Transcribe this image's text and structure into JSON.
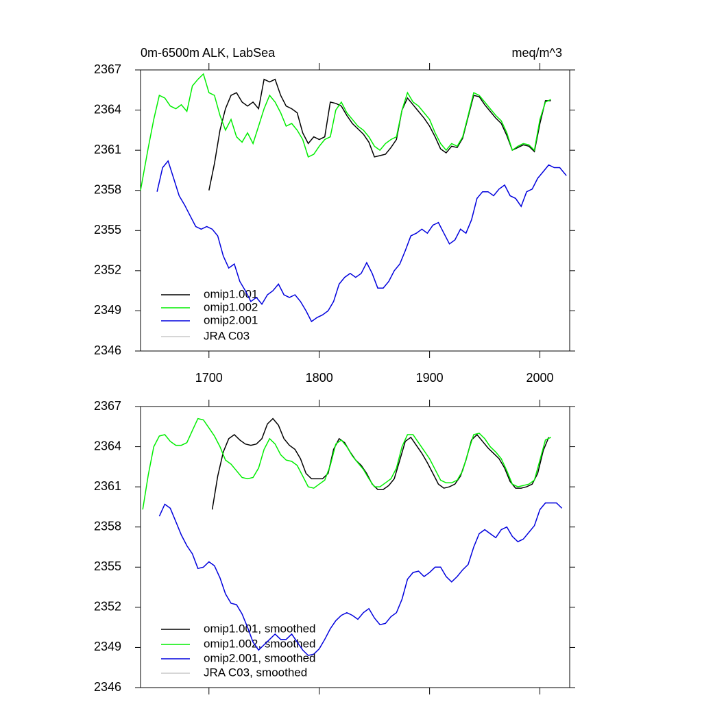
{
  "chart_data": [
    {
      "type": "line",
      "title": "0m-6500m ALK, LabSea",
      "units": "meq/m^3",
      "xlim": [
        1638,
        2027
      ],
      "xticks": [
        1700,
        1800,
        1900,
        2000
      ],
      "ylim": [
        2346,
        2367
      ],
      "yticks": [
        2346,
        2349,
        2352,
        2355,
        2358,
        2361,
        2364,
        2367
      ],
      "series": [
        {
          "name": "omip1.001",
          "color": "#000000",
          "x": [
            1700,
            1705,
            1710,
            1715,
            1720,
            1725,
            1730,
            1735,
            1740,
            1745,
            1750,
            1755,
            1760,
            1765,
            1770,
            1775,
            1780,
            1785,
            1790,
            1795,
            1800,
            1805,
            1810,
            1815,
            1820,
            1825,
            1830,
            1835,
            1840,
            1845,
            1850,
            1855,
            1860,
            1865,
            1870,
            1875,
            1880,
            1885,
            1890,
            1895,
            1900,
            1905,
            1910,
            1915,
            1920,
            1925,
            1930,
            1935,
            1940,
            1945,
            1950,
            1955,
            1960,
            1965,
            1970,
            1975,
            1980,
            1985,
            1990,
            1995,
            2000,
            2005,
            2010
          ],
          "values": [
            2358,
            2360.0,
            2362.5,
            2364.1,
            2365.1,
            2365.3,
            2364.6,
            2364.3,
            2364.6,
            2364.1,
            2366.3,
            2366.1,
            2366.3,
            2365.1,
            2364.3,
            2364.1,
            2363.8,
            2362.3,
            2361.5,
            2362.0,
            2361.8,
            2362.0,
            2364.6,
            2364.5,
            2364.3,
            2363.6,
            2363.0,
            2362.6,
            2362.2,
            2361.6,
            2360.5,
            2360.6,
            2360.7,
            2361.2,
            2361.8,
            2364.0,
            2364.9,
            2364.4,
            2363.9,
            2363.4,
            2362.8,
            2362.0,
            2361.1,
            2360.8,
            2361.3,
            2361.2,
            2361.9,
            2363.5,
            2365.1,
            2365.0,
            2364.4,
            2363.9,
            2363.4,
            2363.0,
            2362.1,
            2361.0,
            2361.2,
            2361.4,
            2361.3,
            2360.9,
            2363.0,
            2364.7,
            2364.7
          ]
        },
        {
          "name": "omip1.002",
          "color": "#00ee00",
          "x": [
            1638,
            1645,
            1650,
            1655,
            1660,
            1665,
            1670,
            1675,
            1680,
            1685,
            1690,
            1695,
            1700,
            1705,
            1710,
            1715,
            1720,
            1725,
            1730,
            1735,
            1740,
            1745,
            1750,
            1755,
            1760,
            1765,
            1770,
            1775,
            1780,
            1785,
            1790,
            1795,
            1800,
            1805,
            1810,
            1815,
            1820,
            1825,
            1830,
            1835,
            1840,
            1845,
            1850,
            1855,
            1860,
            1865,
            1870,
            1875,
            1880,
            1885,
            1890,
            1895,
            1900,
            1905,
            1910,
            1915,
            1920,
            1925,
            1930,
            1935,
            1940,
            1945,
            1950,
            1955,
            1960,
            1965,
            1970,
            1975,
            1980,
            1985,
            1990,
            1995,
            2000,
            2005,
            2010
          ],
          "values": [
            2358,
            2361.2,
            2363.3,
            2365.1,
            2364.9,
            2364.3,
            2364.1,
            2364.4,
            2363.9,
            2365.8,
            2366.3,
            2366.7,
            2365.3,
            2365.1,
            2363.6,
            2362.5,
            2363.3,
            2362.0,
            2361.6,
            2362.3,
            2361.5,
            2362.8,
            2364.1,
            2365.1,
            2364.6,
            2363.8,
            2362.8,
            2363.0,
            2362.5,
            2361.8,
            2360.5,
            2360.7,
            2361.3,
            2361.8,
            2362.0,
            2364.0,
            2364.6,
            2363.8,
            2363.3,
            2362.8,
            2362.5,
            2362.0,
            2361.3,
            2361.0,
            2361.5,
            2361.8,
            2362.0,
            2364.0,
            2365.3,
            2364.6,
            2364.3,
            2363.8,
            2363.3,
            2362.3,
            2361.5,
            2361.0,
            2361.5,
            2361.3,
            2362.0,
            2363.6,
            2365.3,
            2365.1,
            2364.6,
            2364.1,
            2363.6,
            2363.2,
            2362.3,
            2361.0,
            2361.3,
            2361.5,
            2361.4,
            2361.0,
            2363.3,
            2364.6,
            2364.8
          ]
        },
        {
          "name": "omip2.001",
          "color": "#0000dd",
          "x": [
            1653,
            1658,
            1663,
            1668,
            1673,
            1678,
            1683,
            1688,
            1693,
            1698,
            1703,
            1708,
            1713,
            1718,
            1723,
            1728,
            1733,
            1738,
            1743,
            1748,
            1753,
            1758,
            1763,
            1768,
            1773,
            1778,
            1783,
            1788,
            1793,
            1798,
            1803,
            1808,
            1813,
            1818,
            1823,
            1828,
            1833,
            1838,
            1843,
            1848,
            1853,
            1858,
            1863,
            1868,
            1873,
            1878,
            1883,
            1888,
            1893,
            1898,
            1903,
            1908,
            1913,
            1918,
            1923,
            1928,
            1933,
            1938,
            1943,
            1948,
            1953,
            1958,
            1963,
            1968,
            1973,
            1978,
            1983,
            1988,
            1993,
            1998,
            2003,
            2008,
            2013,
            2018,
            2024
          ],
          "values": [
            2357.9,
            2359.7,
            2360.2,
            2358.9,
            2357.6,
            2356.9,
            2356.1,
            2355.3,
            2355.1,
            2355.3,
            2355.1,
            2354.6,
            2353.1,
            2352.2,
            2352.5,
            2351.2,
            2350.5,
            2349.7,
            2350.0,
            2349.5,
            2350.2,
            2350.5,
            2351.0,
            2350.2,
            2350.0,
            2350.2,
            2349.7,
            2349.0,
            2348.2,
            2348.5,
            2348.7,
            2349.0,
            2349.7,
            2351.0,
            2351.5,
            2351.8,
            2351.5,
            2351.8,
            2352.6,
            2351.8,
            2350.7,
            2350.7,
            2351.2,
            2352.0,
            2352.5,
            2353.5,
            2354.6,
            2354.8,
            2355.1,
            2354.8,
            2355.4,
            2355.6,
            2354.8,
            2354.0,
            2354.3,
            2355.1,
            2354.8,
            2355.8,
            2357.4,
            2357.9,
            2357.9,
            2357.6,
            2358.1,
            2358.4,
            2357.6,
            2357.4,
            2356.8,
            2357.9,
            2358.1,
            2358.9,
            2359.4,
            2359.9,
            2359.7,
            2359.7,
            2359.1
          ]
        },
        {
          "name": "JRA C03",
          "color": "#c8c8c8",
          "x": [],
          "values": []
        }
      ]
    },
    {
      "type": "line",
      "xlim": [
        1638,
        2027
      ],
      "xticks": [
        1700,
        1800,
        1900,
        2000
      ],
      "ylim": [
        2346,
        2367
      ],
      "yticks": [
        2346,
        2349,
        2352,
        2355,
        2358,
        2361,
        2364,
        2367
      ],
      "series": [
        {
          "name": "omip1.001, smoothed",
          "color": "#000000",
          "x": [
            1703,
            1708,
            1713,
            1718,
            1723,
            1728,
            1733,
            1738,
            1743,
            1748,
            1753,
            1758,
            1763,
            1768,
            1773,
            1778,
            1783,
            1788,
            1793,
            1798,
            1803,
            1808,
            1813,
            1818,
            1823,
            1828,
            1833,
            1838,
            1843,
            1848,
            1853,
            1858,
            1863,
            1868,
            1873,
            1878,
            1883,
            1888,
            1893,
            1898,
            1903,
            1908,
            1913,
            1918,
            1923,
            1928,
            1933,
            1938,
            1943,
            1948,
            1953,
            1958,
            1963,
            1968,
            1973,
            1978,
            1983,
            1988,
            1993,
            1998,
            2003,
            2008
          ],
          "values": [
            2359.3,
            2361.8,
            2363.6,
            2364.6,
            2364.9,
            2364.5,
            2364.2,
            2364.1,
            2364.2,
            2364.6,
            2365.7,
            2366.1,
            2365.6,
            2364.6,
            2364.1,
            2363.8,
            2363.1,
            2362.0,
            2361.6,
            2361.6,
            2361.6,
            2362.0,
            2363.8,
            2364.6,
            2364.3,
            2363.6,
            2363.0,
            2362.6,
            2362.0,
            2361.2,
            2360.8,
            2360.8,
            2361.1,
            2361.6,
            2363.0,
            2364.4,
            2364.7,
            2364.1,
            2363.5,
            2362.8,
            2362.0,
            2361.2,
            2360.9,
            2361.0,
            2361.2,
            2361.8,
            2363.0,
            2364.5,
            2364.9,
            2364.4,
            2363.9,
            2363.5,
            2363.1,
            2362.4,
            2361.4,
            2360.9,
            2360.9,
            2361.0,
            2361.2,
            2362.0,
            2363.7,
            2364.7
          ]
        },
        {
          "name": "omip1.002, smoothed",
          "color": "#00ee00",
          "x": [
            1640,
            1645,
            1650,
            1655,
            1660,
            1665,
            1670,
            1675,
            1680,
            1685,
            1690,
            1695,
            1700,
            1705,
            1710,
            1715,
            1720,
            1725,
            1730,
            1735,
            1740,
            1745,
            1750,
            1755,
            1760,
            1765,
            1770,
            1775,
            1780,
            1785,
            1790,
            1795,
            1800,
            1805,
            1810,
            1815,
            1820,
            1825,
            1830,
            1835,
            1840,
            1845,
            1850,
            1855,
            1860,
            1865,
            1870,
            1875,
            1880,
            1885,
            1890,
            1895,
            1900,
            1905,
            1910,
            1915,
            1920,
            1925,
            1930,
            1935,
            1940,
            1945,
            1950,
            1955,
            1960,
            1965,
            1970,
            1975,
            1980,
            1985,
            1990,
            1995,
            2000,
            2005,
            2010
          ],
          "values": [
            2359.3,
            2361.9,
            2364.0,
            2364.8,
            2364.9,
            2364.4,
            2364.1,
            2364.1,
            2364.3,
            2365.2,
            2366.1,
            2366.0,
            2365.4,
            2364.8,
            2364.0,
            2363.0,
            2362.7,
            2362.2,
            2361.7,
            2361.6,
            2361.7,
            2362.4,
            2363.8,
            2364.6,
            2364.2,
            2363.4,
            2363.0,
            2362.9,
            2362.6,
            2361.8,
            2361.0,
            2360.9,
            2361.2,
            2361.5,
            2362.6,
            2364.2,
            2364.5,
            2364.0,
            2363.3,
            2362.8,
            2362.3,
            2361.6,
            2361.0,
            2361.0,
            2361.3,
            2361.6,
            2362.4,
            2364.0,
            2364.9,
            2364.9,
            2364.3,
            2363.7,
            2363.1,
            2362.3,
            2361.5,
            2361.3,
            2361.3,
            2361.5,
            2362.2,
            2363.6,
            2364.9,
            2365.0,
            2364.6,
            2364.0,
            2363.6,
            2363.1,
            2362.2,
            2361.2,
            2361.0,
            2361.1,
            2361.2,
            2361.5,
            2363.0,
            2364.5,
            2364.7
          ]
        },
        {
          "name": "omip2.001, smoothed",
          "color": "#0000dd",
          "x": [
            1655,
            1660,
            1665,
            1670,
            1675,
            1680,
            1685,
            1690,
            1695,
            1700,
            1705,
            1710,
            1715,
            1720,
            1725,
            1730,
            1735,
            1740,
            1745,
            1750,
            1755,
            1760,
            1765,
            1770,
            1775,
            1780,
            1785,
            1790,
            1795,
            1800,
            1805,
            1810,
            1815,
            1820,
            1825,
            1830,
            1835,
            1840,
            1845,
            1850,
            1855,
            1860,
            1865,
            1870,
            1875,
            1880,
            1885,
            1890,
            1895,
            1900,
            1905,
            1910,
            1915,
            1920,
            1925,
            1930,
            1935,
            1940,
            1945,
            1950,
            1955,
            1960,
            1965,
            1970,
            1975,
            1980,
            1985,
            1990,
            1995,
            2000,
            2005,
            2010,
            2015,
            2020
          ],
          "values": [
            2358.8,
            2359.7,
            2359.4,
            2358.4,
            2357.4,
            2356.6,
            2356.0,
            2354.9,
            2355.0,
            2355.4,
            2355.1,
            2354.2,
            2353.0,
            2352.3,
            2352.2,
            2351.5,
            2350.5,
            2349.4,
            2348.8,
            2349.2,
            2349.6,
            2350.0,
            2349.6,
            2349.6,
            2350.0,
            2349.4,
            2348.8,
            2348.4,
            2348.5,
            2348.9,
            2349.6,
            2350.4,
            2351.0,
            2351.4,
            2351.6,
            2351.4,
            2351.1,
            2351.6,
            2351.9,
            2351.2,
            2350.7,
            2350.8,
            2351.3,
            2351.6,
            2352.6,
            2354.1,
            2354.6,
            2354.7,
            2354.3,
            2354.6,
            2355.0,
            2355.0,
            2354.3,
            2353.9,
            2354.3,
            2354.8,
            2355.2,
            2356.5,
            2357.5,
            2357.8,
            2357.5,
            2357.2,
            2357.8,
            2358.0,
            2357.3,
            2356.9,
            2357.1,
            2357.6,
            2358.1,
            2359.3,
            2359.8,
            2359.8,
            2359.8,
            2359.4
          ]
        },
        {
          "name": "JRA C03, smoothed",
          "color": "#c8c8c8",
          "x": [],
          "values": []
        }
      ]
    }
  ]
}
